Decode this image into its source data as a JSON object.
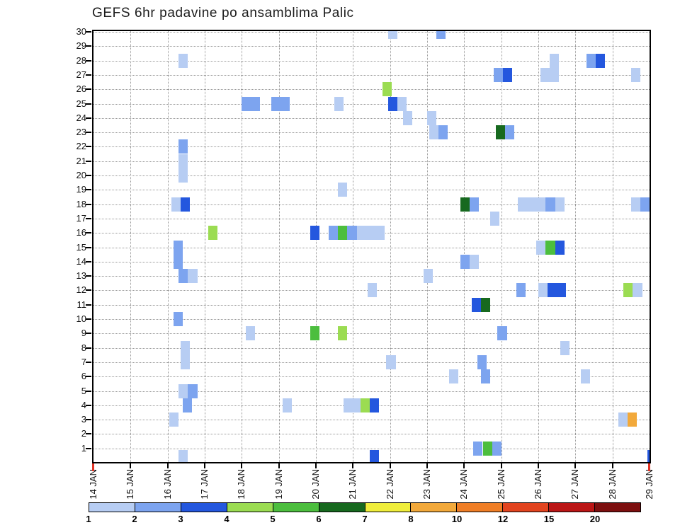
{
  "title": "GEFS 6hr padavine po ansamblima Palic",
  "chart_data": {
    "type": "heatmap",
    "title": "GEFS 6hr padavine po ansamblima Palic",
    "grid": true,
    "plot_bg": "#ffffff",
    "x_axis": {
      "range": [
        14,
        29
      ],
      "labels": [
        "14 JAN",
        "15 JAN",
        "16 JAN",
        "17 JAN",
        "18 JAN",
        "19 JAN",
        "20 JAN",
        "21 JAN",
        "22 JAN",
        "23 JAN",
        "24 JAN",
        "25 JAN",
        "26 JAN",
        "27 JAN",
        "28 JAN",
        "29 JAN"
      ]
    },
    "y_axis": {
      "range": [
        1,
        30
      ],
      "labels": [
        "1",
        "2",
        "3",
        "4",
        "5",
        "6",
        "7",
        "8",
        "9",
        "10",
        "11",
        "12",
        "13",
        "14",
        "15",
        "16",
        "17",
        "18",
        "19",
        "20",
        "21",
        "22",
        "23",
        "24",
        "25",
        "26",
        "27",
        "28",
        "29",
        "30"
      ]
    },
    "colorbar": {
      "ticks": [
        1,
        2,
        3,
        4,
        5,
        6,
        7,
        8,
        10,
        12,
        15,
        20
      ],
      "colors": [
        "#b7cdf3",
        "#7da4ef",
        "#2457de",
        "#9bdc52",
        "#4cbe3e",
        "#17691f",
        "#f0ee3c",
        "#f2a93b",
        "#ef7e26",
        "#e2441f",
        "#bb1616",
        "#7d0f0f"
      ]
    },
    "marker_color": "#e13224",
    "cells": [
      {
        "r": 30,
        "d": 21.95,
        "w": 1,
        "l": 1
      },
      {
        "r": 30,
        "d": 23.25,
        "w": 1,
        "l": 2
      },
      {
        "r": 28,
        "d": 16.3,
        "w": 1,
        "l": 1
      },
      {
        "r": 28,
        "d": 26.3,
        "w": 1,
        "l": 1
      },
      {
        "r": 28,
        "d": 27.3,
        "w": 1,
        "l": 2
      },
      {
        "r": 28,
        "d": 27.55,
        "w": 1,
        "l": 3
      },
      {
        "r": 27,
        "d": 24.8,
        "w": 1,
        "l": 2
      },
      {
        "r": 27,
        "d": 25.05,
        "w": 1,
        "l": 3
      },
      {
        "r": 27,
        "d": 26.05,
        "w": 2,
        "l": 1
      },
      {
        "r": 27,
        "d": 28.5,
        "w": 1,
        "l": 1
      },
      {
        "r": 26,
        "d": 21.8,
        "w": 1,
        "l": 4
      },
      {
        "r": 25,
        "d": 18.0,
        "w": 2,
        "l": 2
      },
      {
        "r": 25,
        "d": 18.8,
        "w": 2,
        "l": 2
      },
      {
        "r": 25,
        "d": 20.5,
        "w": 1,
        "l": 1
      },
      {
        "r": 25,
        "d": 21.95,
        "w": 1,
        "l": 3
      },
      {
        "r": 25,
        "d": 22.2,
        "w": 1,
        "l": 1
      },
      {
        "r": 24,
        "d": 22.35,
        "w": 1,
        "l": 1
      },
      {
        "r": 24,
        "d": 23.0,
        "w": 1,
        "l": 1
      },
      {
        "r": 23,
        "d": 23.05,
        "w": 1,
        "l": 1
      },
      {
        "r": 23,
        "d": 23.3,
        "w": 1,
        "l": 2
      },
      {
        "r": 23,
        "d": 24.85,
        "w": 1,
        "l": 6
      },
      {
        "r": 23,
        "d": 25.1,
        "w": 1,
        "l": 2
      },
      {
        "r": 22,
        "d": 16.3,
        "w": 1,
        "l": 2
      },
      {
        "r": 21,
        "d": 16.3,
        "w": 1,
        "l": 1
      },
      {
        "r": 20,
        "d": 16.3,
        "w": 1,
        "l": 1
      },
      {
        "r": 19,
        "d": 20.6,
        "w": 1,
        "l": 1
      },
      {
        "r": 18,
        "d": 16.1,
        "w": 1,
        "l": 1
      },
      {
        "r": 18,
        "d": 16.35,
        "w": 1,
        "l": 3
      },
      {
        "r": 18,
        "d": 23.9,
        "w": 1,
        "l": 6
      },
      {
        "r": 18,
        "d": 24.15,
        "w": 1,
        "l": 2
      },
      {
        "r": 18,
        "d": 25.45,
        "w": 3,
        "l": 1
      },
      {
        "r": 18,
        "d": 26.2,
        "w": 1,
        "l": 2
      },
      {
        "r": 18,
        "d": 26.45,
        "w": 1,
        "l": 1
      },
      {
        "r": 18,
        "d": 28.5,
        "w": 1,
        "l": 1
      },
      {
        "r": 18,
        "d": 28.75,
        "w": 1,
        "l": 2
      },
      {
        "r": 17,
        "d": 24.7,
        "w": 1,
        "l": 1
      },
      {
        "r": 16,
        "d": 17.1,
        "w": 1,
        "l": 4
      },
      {
        "r": 16,
        "d": 19.85,
        "w": 1,
        "l": 3
      },
      {
        "r": 16,
        "d": 20.35,
        "w": 1,
        "l": 2
      },
      {
        "r": 16,
        "d": 20.6,
        "w": 1,
        "l": 5
      },
      {
        "r": 16,
        "d": 20.85,
        "w": 1,
        "l": 2
      },
      {
        "r": 16,
        "d": 21.1,
        "w": 3,
        "l": 1
      },
      {
        "r": 15,
        "d": 16.15,
        "w": 1,
        "l": 2
      },
      {
        "r": 15,
        "d": 25.95,
        "w": 1,
        "l": 1
      },
      {
        "r": 15,
        "d": 26.2,
        "w": 1,
        "l": 5
      },
      {
        "r": 15,
        "d": 26.45,
        "w": 1,
        "l": 3
      },
      {
        "r": 14,
        "d": 16.15,
        "w": 1,
        "l": 2
      },
      {
        "r": 14,
        "d": 23.9,
        "w": 1,
        "l": 2
      },
      {
        "r": 14,
        "d": 24.15,
        "w": 1,
        "l": 1
      },
      {
        "r": 13,
        "d": 16.3,
        "w": 1,
        "l": 2
      },
      {
        "r": 13,
        "d": 16.55,
        "w": 1,
        "l": 1
      },
      {
        "r": 13,
        "d": 22.9,
        "w": 1,
        "l": 1
      },
      {
        "r": 12,
        "d": 21.4,
        "w": 1,
        "l": 1
      },
      {
        "r": 12,
        "d": 25.4,
        "w": 1,
        "l": 2
      },
      {
        "r": 12,
        "d": 26.0,
        "w": 1,
        "l": 1
      },
      {
        "r": 12,
        "d": 26.25,
        "w": 2,
        "l": 3
      },
      {
        "r": 12,
        "d": 28.3,
        "w": 1,
        "l": 4
      },
      {
        "r": 12,
        "d": 28.55,
        "w": 1,
        "l": 1
      },
      {
        "r": 11,
        "d": 24.2,
        "w": 1,
        "l": 3
      },
      {
        "r": 11,
        "d": 24.45,
        "w": 1,
        "l": 6
      },
      {
        "r": 10,
        "d": 16.15,
        "w": 1,
        "l": 2
      },
      {
        "r": 9,
        "d": 18.1,
        "w": 1,
        "l": 1
      },
      {
        "r": 9,
        "d": 19.85,
        "w": 1,
        "l": 5
      },
      {
        "r": 9,
        "d": 20.6,
        "w": 1,
        "l": 4
      },
      {
        "r": 9,
        "d": 24.9,
        "w": 1,
        "l": 2
      },
      {
        "r": 8,
        "d": 16.35,
        "w": 1,
        "l": 1
      },
      {
        "r": 8,
        "d": 26.6,
        "w": 1,
        "l": 1
      },
      {
        "r": 7,
        "d": 16.35,
        "w": 1,
        "l": 1
      },
      {
        "r": 7,
        "d": 21.9,
        "w": 1,
        "l": 1
      },
      {
        "r": 7,
        "d": 24.35,
        "w": 1,
        "l": 2
      },
      {
        "r": 6,
        "d": 23.6,
        "w": 1,
        "l": 1
      },
      {
        "r": 6,
        "d": 24.45,
        "w": 1,
        "l": 2
      },
      {
        "r": 6,
        "d": 27.15,
        "w": 1,
        "l": 1
      },
      {
        "r": 5,
        "d": 16.3,
        "w": 1,
        "l": 1
      },
      {
        "r": 5,
        "d": 16.55,
        "w": 1,
        "l": 2
      },
      {
        "r": 4,
        "d": 16.4,
        "w": 1,
        "l": 2
      },
      {
        "r": 4,
        "d": 19.1,
        "w": 1,
        "l": 1
      },
      {
        "r": 4,
        "d": 20.75,
        "w": 2,
        "l": 1
      },
      {
        "r": 4,
        "d": 21.2,
        "w": 1,
        "l": 4
      },
      {
        "r": 4,
        "d": 21.45,
        "w": 1,
        "l": 3
      },
      {
        "r": 3,
        "d": 16.05,
        "w": 1,
        "l": 1
      },
      {
        "r": 3,
        "d": 28.15,
        "w": 1,
        "l": 1
      },
      {
        "r": 3,
        "d": 28.4,
        "w": 1,
        "l": 8
      },
      {
        "r": 1,
        "d": 24.25,
        "w": 1,
        "l": 2
      },
      {
        "r": 1,
        "d": 24.5,
        "w": 1,
        "l": 5
      },
      {
        "r": 1,
        "d": 24.75,
        "w": 1,
        "l": 2
      },
      {
        "r": 0.4,
        "d": 16.3,
        "w": 1,
        "l": 1
      },
      {
        "r": 0.4,
        "d": 21.45,
        "w": 1,
        "l": 3
      },
      {
        "r": 0.4,
        "d": 28.95,
        "w": 1,
        "l": 3
      }
    ]
  }
}
